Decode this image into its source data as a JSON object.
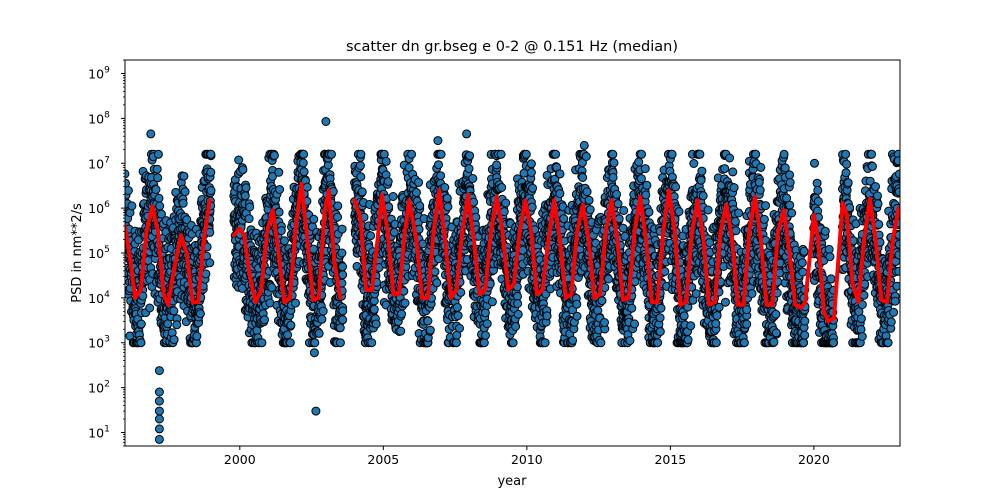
{
  "chart_data": {
    "type": "scatter",
    "title": "scatter dn gr.bseg e 0-2 @ 0.151 Hz (median)",
    "xlabel": "year",
    "ylabel": "PSD in nm**2/s",
    "yscale": "log",
    "xlim": [
      1996.0,
      2023.0
    ],
    "ylim": [
      5,
      2000000000
    ],
    "x_ticks": [
      2000,
      2005,
      2010,
      2015,
      2020
    ],
    "x_tick_labels": [
      "2000",
      "2005",
      "2010",
      "2015",
      "2020"
    ],
    "y_ticks": [
      10,
      100,
      1000,
      10000,
      100000,
      1000000,
      10000000,
      100000000,
      1000000000
    ],
    "y_tick_labels": [
      {
        "base": "10",
        "exp": "1"
      },
      {
        "base": "10",
        "exp": "2"
      },
      {
        "base": "10",
        "exp": "3"
      },
      {
        "base": "10",
        "exp": "4"
      },
      {
        "base": "10",
        "exp": "5"
      },
      {
        "base": "10",
        "exp": "6"
      },
      {
        "base": "10",
        "exp": "7"
      },
      {
        "base": "10",
        "exp": "8"
      },
      {
        "base": "10",
        "exp": "9"
      }
    ],
    "grid": false,
    "series": [
      {
        "kind": "scatter",
        "color": "#1f77b4",
        "edgecolor": "#000000",
        "description": "daily PSD samples; seasonal oscillation between about 1e3 and 1e7, data gaps 1999.0-1999.8, 2003.6-2004.0, 2019.7-2020.0, 2020.7-2021.0",
        "segments": [
          [
            1996.0,
            1999.0
          ],
          [
            1999.8,
            2003.6
          ],
          [
            2004.0,
            2019.7
          ],
          [
            2020.0,
            2020.7
          ],
          [
            2021.0,
            2023.0
          ]
        ],
        "envelope_low": 2000,
        "envelope_high": 10000000,
        "outliers": [
          {
            "x": 1997.2,
            "y": 240
          },
          {
            "x": 1997.2,
            "y": 80
          },
          {
            "x": 1997.2,
            "y": 50
          },
          {
            "x": 1997.2,
            "y": 30
          },
          {
            "x": 1997.2,
            "y": 20
          },
          {
            "x": 1997.2,
            "y": 12
          },
          {
            "x": 1997.2,
            "y": 7
          },
          {
            "x": 1996.9,
            "y": 45000000
          },
          {
            "x": 2002.6,
            "y": 600
          },
          {
            "x": 2002.65,
            "y": 30
          },
          {
            "x": 2003.0,
            "y": 85000000
          },
          {
            "x": 2007.9,
            "y": 45000000
          },
          {
            "x": 2006.9,
            "y": 32000000
          },
          {
            "x": 2012.0,
            "y": 25000000
          }
        ]
      },
      {
        "kind": "line",
        "name": "median",
        "color": "#ff0000",
        "points": [
          [
            1996.0,
            400000
          ],
          [
            1996.2,
            60000
          ],
          [
            1996.35,
            10000
          ],
          [
            1996.55,
            15000
          ],
          [
            1996.75,
            300000
          ],
          [
            1996.95,
            1100000
          ],
          [
            1997.15,
            300000
          ],
          [
            1997.35,
            12000
          ],
          [
            1997.5,
            7000
          ],
          [
            1997.7,
            40000
          ],
          [
            1997.95,
            250000
          ],
          [
            1998.15,
            100000
          ],
          [
            1998.35,
            8000
          ],
          [
            1998.55,
            8000
          ],
          [
            1998.75,
            200000
          ],
          [
            1998.95,
            1500000
          ],
          [
            1999.8,
            250000
          ],
          [
            2000.0,
            350000
          ],
          [
            2000.15,
            250000
          ],
          [
            2000.35,
            30000
          ],
          [
            2000.55,
            8000
          ],
          [
            2000.75,
            15000
          ],
          [
            2000.95,
            300000
          ],
          [
            2001.15,
            900000
          ],
          [
            2001.35,
            100000
          ],
          [
            2001.55,
            8000
          ],
          [
            2001.75,
            10000
          ],
          [
            2001.95,
            400000
          ],
          [
            2002.15,
            3500000
          ],
          [
            2002.35,
            200000
          ],
          [
            2002.55,
            9000
          ],
          [
            2002.75,
            10000
          ],
          [
            2002.95,
            800000
          ],
          [
            2003.1,
            2500000
          ],
          [
            2003.3,
            60000
          ],
          [
            2003.5,
            10000
          ],
          [
            2004.0,
            1500000
          ],
          [
            2004.2,
            600000
          ],
          [
            2004.4,
            15000
          ],
          [
            2004.6,
            15000
          ],
          [
            2004.8,
            200000
          ],
          [
            2004.95,
            2000000
          ],
          [
            2005.15,
            300000
          ],
          [
            2005.35,
            12000
          ],
          [
            2005.55,
            12000
          ],
          [
            2005.75,
            300000
          ],
          [
            2005.9,
            1500000
          ],
          [
            2006.15,
            200000
          ],
          [
            2006.35,
            10000
          ],
          [
            2006.55,
            10000
          ],
          [
            2006.75,
            300000
          ],
          [
            2006.95,
            2500000
          ],
          [
            2007.15,
            200000
          ],
          [
            2007.35,
            10000
          ],
          [
            2007.55,
            15000
          ],
          [
            2007.75,
            300000
          ],
          [
            2007.95,
            2000000
          ],
          [
            2008.15,
            200000
          ],
          [
            2008.35,
            12000
          ],
          [
            2008.55,
            15000
          ],
          [
            2008.75,
            300000
          ],
          [
            2008.95,
            1800000
          ],
          [
            2009.15,
            300000
          ],
          [
            2009.35,
            15000
          ],
          [
            2009.55,
            20000
          ],
          [
            2009.75,
            300000
          ],
          [
            2009.95,
            1500000
          ],
          [
            2010.15,
            300000
          ],
          [
            2010.35,
            12000
          ],
          [
            2010.55,
            15000
          ],
          [
            2010.75,
            200000
          ],
          [
            2010.95,
            1500000
          ],
          [
            2011.15,
            200000
          ],
          [
            2011.35,
            10000
          ],
          [
            2011.55,
            12000
          ],
          [
            2011.75,
            300000
          ],
          [
            2011.95,
            1200000
          ],
          [
            2012.15,
            200000
          ],
          [
            2012.35,
            10000
          ],
          [
            2012.55,
            12000
          ],
          [
            2012.75,
            300000
          ],
          [
            2012.95,
            1500000
          ],
          [
            2013.15,
            200000
          ],
          [
            2013.35,
            9000
          ],
          [
            2013.55,
            10000
          ],
          [
            2013.75,
            300000
          ],
          [
            2013.95,
            1800000
          ],
          [
            2014.15,
            200000
          ],
          [
            2014.35,
            8000
          ],
          [
            2014.55,
            8000
          ],
          [
            2014.75,
            300000
          ],
          [
            2014.95,
            2500000
          ],
          [
            2015.15,
            300000
          ],
          [
            2015.35,
            7000
          ],
          [
            2015.55,
            8000
          ],
          [
            2015.75,
            300000
          ],
          [
            2015.95,
            1500000
          ],
          [
            2016.15,
            200000
          ],
          [
            2016.35,
            7000
          ],
          [
            2016.55,
            8000
          ],
          [
            2016.75,
            300000
          ],
          [
            2016.95,
            1200000
          ],
          [
            2017.15,
            200000
          ],
          [
            2017.35,
            7000
          ],
          [
            2017.55,
            7000
          ],
          [
            2017.75,
            300000
          ],
          [
            2017.95,
            1800000
          ],
          [
            2018.15,
            200000
          ],
          [
            2018.35,
            7000
          ],
          [
            2018.55,
            7000
          ],
          [
            2018.75,
            300000
          ],
          [
            2018.95,
            900000
          ],
          [
            2019.15,
            100000
          ],
          [
            2019.35,
            7000
          ],
          [
            2019.55,
            6000
          ],
          [
            2019.7,
            8000
          ],
          [
            2020.0,
            700000
          ],
          [
            2020.15,
            200000
          ],
          [
            2020.35,
            5000
          ],
          [
            2020.5,
            3000
          ],
          [
            2020.7,
            3500
          ],
          [
            2021.0,
            1300000
          ],
          [
            2021.15,
            700000
          ],
          [
            2021.35,
            20000
          ],
          [
            2021.55,
            8000
          ],
          [
            2021.75,
            200000
          ],
          [
            2021.95,
            1600000
          ],
          [
            2022.15,
            200000
          ],
          [
            2022.35,
            9000
          ],
          [
            2022.55,
            8000
          ],
          [
            2022.75,
            200000
          ],
          [
            2022.95,
            1000000
          ]
        ]
      }
    ]
  }
}
